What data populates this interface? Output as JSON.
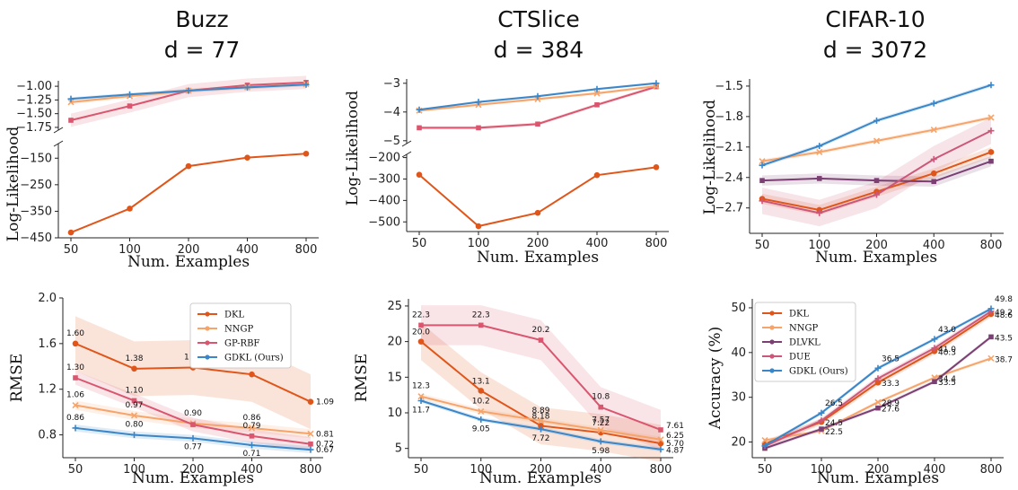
{
  "titles": [
    {
      "line1": "Buzz",
      "line2": "d = 77"
    },
    {
      "line1": "CTSlice",
      "line2": "d = 384"
    },
    {
      "line1": "CIFAR-10",
      "line2": "d = 3072"
    }
  ],
  "colors": {
    "DKL": "#e0561a",
    "NNGP": "#f6a46a",
    "GP-RBF": "#d9566e",
    "GDKL (Ours)": "#3a86c8",
    "DLVKL": "#7b3f73",
    "DUE": "#cc5779"
  },
  "chart_data": [
    {
      "type": "line",
      "panel": "buzz-ll-top",
      "x": [
        50,
        100,
        200,
        400,
        800
      ],
      "xscale": "log",
      "ylabel": "Log-Likelihood",
      "ylim": [
        -1.8,
        -0.9
      ],
      "yticks": [
        -1.0,
        -1.25,
        -1.5,
        -1.75
      ],
      "yticklabels": [
        "−1.00",
        "−1.25",
        "−1.50",
        "−1.75"
      ],
      "series": [
        {
          "name": "GP-RBF",
          "values": [
            -1.62,
            -1.36,
            -1.08,
            -0.98,
            -0.93
          ],
          "band": 0.12
        },
        {
          "name": "NNGP",
          "values": [
            -1.29,
            -1.18,
            -1.08,
            -1.02,
            -0.96
          ],
          "band": 0.04
        },
        {
          "name": "GDKL (Ours)",
          "values": [
            -1.23,
            -1.15,
            -1.08,
            -1.02,
            -0.97
          ],
          "band": 0.03
        }
      ]
    },
    {
      "type": "line",
      "panel": "buzz-ll-bottom",
      "x": [
        50,
        100,
        200,
        400,
        800
      ],
      "xscale": "log",
      "xlabel": "Num. Examples",
      "xticklabels": [
        "50",
        "100",
        "200",
        "400",
        "800"
      ],
      "ylim": [
        -450,
        -95
      ],
      "yticks": [
        -150,
        -250,
        -350,
        -450
      ],
      "yticklabels": [
        "−150",
        "−250",
        "−350",
        "−450"
      ],
      "series": [
        {
          "name": "DKL",
          "values": [
            -430,
            -340,
            -180,
            -148,
            -133
          ],
          "band": 0
        }
      ]
    },
    {
      "type": "line",
      "panel": "buzz-rmse",
      "x": [
        50,
        100,
        200,
        400,
        800
      ],
      "xscale": "log",
      "xlabel": "Num. Examples",
      "xticklabels": [
        "50",
        "100",
        "200",
        "400",
        "800"
      ],
      "ylabel": "RMSE",
      "ylim": [
        0.6,
        2.0
      ],
      "yticks": [
        2.0,
        1.6,
        1.2,
        0.8
      ],
      "yticklabels": [
        "2.0",
        "1.6",
        "1.2",
        "0.8"
      ],
      "legend": "top-right",
      "series": [
        {
          "name": "DKL",
          "values": [
            1.6,
            1.38,
            1.39,
            1.33,
            1.09
          ],
          "labels": [
            "1.60",
            "1.38",
            "1.39",
            "1.33",
            "1.09"
          ],
          "band": 0.24
        },
        {
          "name": "NNGP",
          "values": [
            1.06,
            0.97,
            0.9,
            0.86,
            0.81
          ],
          "labels": [
            "1.06",
            "0.97",
            "0.90",
            "0.86",
            "0.81"
          ],
          "band": 0.04
        },
        {
          "name": "GP-RBF",
          "values": [
            1.3,
            1.1,
            0.89,
            0.79,
            0.72
          ],
          "labels": [
            "1.30",
            "1.10",
            "",
            "0.79",
            "0.72"
          ],
          "band": 0.06
        },
        {
          "name": "GDKL (Ours)",
          "values": [
            0.86,
            0.8,
            0.77,
            0.71,
            0.67
          ],
          "labels": [
            "0.86",
            "0.80",
            "0.77",
            "0.71",
            "0.67"
          ],
          "band": 0.03
        }
      ]
    },
    {
      "type": "line",
      "panel": "ctslice-ll-top",
      "x": [
        50,
        100,
        200,
        400,
        800
      ],
      "xscale": "log",
      "ylim": [
        -5.1,
        -2.85
      ],
      "yticks": [
        -3,
        -4,
        -5
      ],
      "yticklabels": [
        "−3",
        "−4",
        "−5"
      ],
      "series": [
        {
          "name": "GP-RBF",
          "values": [
            -4.55,
            -4.55,
            -4.42,
            -3.75,
            -3.12
          ],
          "band": 0.06
        },
        {
          "name": "NNGP",
          "values": [
            -3.95,
            -3.75,
            -3.55,
            -3.35,
            -3.1
          ],
          "band": 0.05
        },
        {
          "name": "GDKL (Ours)",
          "values": [
            -3.92,
            -3.65,
            -3.45,
            -3.2,
            -3.0
          ],
          "band": 0.04
        }
      ]
    },
    {
      "type": "line",
      "panel": "ctslice-ll-bottom",
      "x": [
        50,
        100,
        200,
        400,
        800
      ],
      "xscale": "log",
      "xlabel": "Num. Examples",
      "xticklabels": [
        "50",
        "100",
        "200",
        "400",
        "800"
      ],
      "ylabel": "Log-Likelihood",
      "ylim": [
        -545,
        -185
      ],
      "yticks": [
        -200,
        -300,
        -400,
        -500
      ],
      "yticklabels": [
        "−200",
        "−300",
        "−400",
        "−500"
      ],
      "series": [
        {
          "name": "DKL",
          "values": [
            -280,
            -520,
            -458,
            -282,
            -245
          ],
          "band": 0
        }
      ]
    },
    {
      "type": "line",
      "panel": "ctslice-rmse",
      "x": [
        50,
        100,
        200,
        400,
        800
      ],
      "xscale": "log",
      "xlabel": "Num. Examples",
      "xticklabels": [
        "50",
        "100",
        "200",
        "400",
        "800"
      ],
      "ylabel": "RMSE",
      "ylim": [
        3.7,
        26
      ],
      "yticks": [
        25,
        20,
        15,
        10,
        5
      ],
      "yticklabels": [
        "25",
        "20",
        "15",
        "10",
        "5"
      ],
      "series": [
        {
          "name": "DKL",
          "values": [
            20.0,
            13.1,
            8.18,
            7.22,
            5.7
          ],
          "labels": [
            "20.0",
            "13.1",
            "8.18",
            "7.22",
            "5.70"
          ],
          "band": 2.6
        },
        {
          "name": "NNGP",
          "values": [
            12.3,
            10.2,
            8.89,
            7.57,
            6.25
          ],
          "labels": [
            "12.3",
            "10.2",
            "8.89",
            "7.57",
            "6.25"
          ],
          "band": 0.4
        },
        {
          "name": "GP-RBF",
          "values": [
            22.3,
            22.3,
            20.2,
            10.8,
            7.61
          ],
          "labels": [
            "22.3",
            "22.3",
            "20.2",
            "10.8",
            "7.61"
          ],
          "band": 2.8
        },
        {
          "name": "GDKL (Ours)",
          "values": [
            11.7,
            9.05,
            7.72,
            5.98,
            4.87
          ],
          "labels": [
            "11.7",
            "9.05",
            "7.72",
            "5.98",
            "4.87"
          ],
          "band": 0.3
        }
      ]
    },
    {
      "type": "line",
      "panel": "cifar-ll",
      "x": [
        50,
        100,
        200,
        400,
        800
      ],
      "xscale": "log",
      "xlabel": "Num. Examples",
      "xticklabels": [
        "50",
        "100",
        "200",
        "400",
        "800"
      ],
      "ylabel": "Log-Likelihood",
      "ylim": [
        -2.95,
        -1.43
      ],
      "yticks": [
        -1.5,
        -1.8,
        -2.1,
        -2.4,
        -2.7
      ],
      "yticklabels": [
        "−1.5",
        "−1.8",
        "−2.1",
        "−2.4",
        "−2.7"
      ],
      "series": [
        {
          "name": "DKL",
          "values": [
            -2.61,
            -2.72,
            -2.54,
            -2.36,
            -2.15
          ],
          "band": 0.05
        },
        {
          "name": "NNGP",
          "values": [
            -2.24,
            -2.15,
            -2.04,
            -1.93,
            -1.81
          ],
          "band": 0.02
        },
        {
          "name": "DLVKL",
          "values": [
            -2.43,
            -2.41,
            -2.43,
            -2.44,
            -2.24
          ],
          "band": 0.05
        },
        {
          "name": "DUE",
          "values": [
            -2.63,
            -2.75,
            -2.57,
            -2.22,
            -1.94
          ],
          "band": 0.13
        },
        {
          "name": "GDKL (Ours)",
          "values": [
            -2.28,
            -2.09,
            -1.84,
            -1.67,
            -1.49
          ],
          "band": 0.02
        }
      ]
    },
    {
      "type": "line",
      "panel": "cifar-acc",
      "x": [
        50,
        100,
        200,
        400,
        800
      ],
      "xscale": "log",
      "xlabel": "Num. Examples",
      "xticklabels": [
        "50",
        "100",
        "200",
        "400",
        "800"
      ],
      "ylabel": "Accuracy (%)",
      "ylim": [
        16.5,
        52
      ],
      "yticks": [
        50,
        40,
        30,
        20
      ],
      "yticklabels": [
        "50",
        "40",
        "30",
        "20"
      ],
      "legend": "top-left",
      "series": [
        {
          "name": "DKL",
          "values": [
            19.6,
            24.5,
            33.3,
            40.3,
            48.6
          ],
          "labels": [
            "",
            "24.5",
            "33.3",
            "40.3",
            "48.6"
          ],
          "band": 0.7
        },
        {
          "name": "NNGP",
          "values": [
            20.4,
            22.5,
            28.9,
            34.4,
            38.7
          ],
          "labels": [
            "",
            "22.5",
            "28.9",
            "34.4",
            "38.7"
          ],
          "band": 0.4
        },
        {
          "name": "DLVKL",
          "values": [
            18.6,
            22.9,
            27.6,
            33.5,
            43.5
          ],
          "labels": [
            "",
            "",
            "27.6",
            "33.5",
            "43.5"
          ],
          "band": 0.4
        },
        {
          "name": "DUE",
          "values": [
            19.1,
            24.8,
            34.2,
            41.0,
            49.2
          ],
          "labels": [
            "",
            "",
            "",
            "41.0",
            "49.2"
          ],
          "band": 0.6
        },
        {
          "name": "GDKL (Ours)",
          "values": [
            19.2,
            26.5,
            36.5,
            43.0,
            49.8
          ],
          "labels": [
            "",
            "26.5",
            "36.5",
            "43.0",
            "49.8"
          ],
          "band": 0.4
        }
      ]
    }
  ]
}
